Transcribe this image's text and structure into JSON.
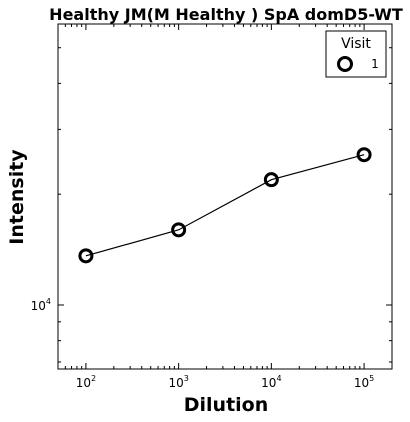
{
  "chart_data": {
    "type": "line",
    "title": "Healthy JM(M Healthy ) SpA domD5-WT",
    "xlabel": "Dilution",
    "ylabel": "Intensity",
    "xscale": "log",
    "yscale": "log",
    "xlim": [
      50,
      200000
    ],
    "ylim": [
      6700,
      58000
    ],
    "x_ticks": [
      {
        "value": 100,
        "base": "10",
        "exp": "2"
      },
      {
        "value": 1000,
        "base": "10",
        "exp": "3"
      },
      {
        "value": 10000,
        "base": "10",
        "exp": "4"
      },
      {
        "value": 100000,
        "base": "10",
        "exp": "5"
      }
    ],
    "y_ticks": [
      {
        "value": 10000,
        "base": "10",
        "exp": "4"
      }
    ],
    "legend": {
      "title": "Visit",
      "position": "top-right"
    },
    "grid": false,
    "series": [
      {
        "name": "1",
        "x": [
          100,
          1000,
          10000,
          100000
        ],
        "y": [
          13600,
          16000,
          21900,
          25600
        ],
        "marker": "open-circle",
        "color": "#000000"
      }
    ]
  }
}
